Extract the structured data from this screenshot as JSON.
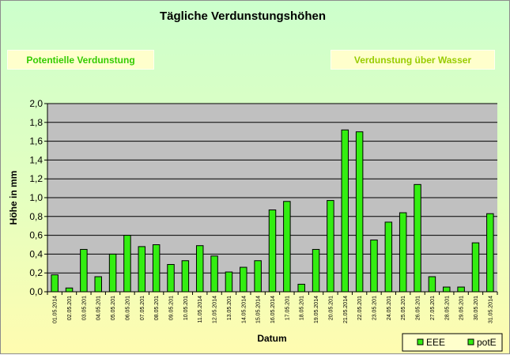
{
  "title": "Tägliche Verdunstungshöhen",
  "buttons": {
    "potential": "Potentielle Verdunstung",
    "wasser": "Verdunstung über Wasser"
  },
  "colors": {
    "bar": "#33ee11",
    "plot_bg": "#c0c0c0",
    "potential_text": "#33cc00",
    "wasser_text": "#99cc00"
  },
  "chart_data": {
    "type": "bar",
    "title": "Tägliche Verdunstungshöhen",
    "xlabel": "Datum",
    "ylabel": "Höhe in mm",
    "ylim": [
      0,
      2.0
    ],
    "yticks": [
      "0,0",
      "0,2",
      "0,4",
      "0,6",
      "0,8",
      "1,0",
      "1,2",
      "1,4",
      "1,6",
      "1,8",
      "2,0"
    ],
    "grid": true,
    "legend_position": "bottom-right",
    "categories": [
      "01.05.2014",
      "02.05.201",
      "03.05.201",
      "04.05.201",
      "05.05.201",
      "06.05.201",
      "07.05.201",
      "08.05.201",
      "09.05.201",
      "10.05.201",
      "11.05.2014",
      "12.05.2014",
      "13.05.201",
      "14.05.2014",
      "15.05.2014",
      "16.05.2014",
      "17.05.201",
      "18.05.201",
      "19.05.2014",
      "20.05.201",
      "21.05.2014",
      "22.05.201",
      "23.05.201",
      "24.05.201",
      "25.05.201",
      "26.05.201",
      "27.05.201",
      "28.05.201",
      "29.05.201",
      "30.05.201",
      "31.05.2014"
    ],
    "series": [
      {
        "name": "EEE",
        "values": [
          0,
          0,
          0,
          0,
          0,
          0,
          0,
          0,
          0,
          0,
          0,
          0,
          0,
          0,
          0,
          0,
          0,
          0,
          0,
          0,
          0,
          0,
          0,
          0,
          0,
          0,
          0,
          0,
          0,
          0,
          0
        ]
      },
      {
        "name": "potE",
        "values": [
          0.18,
          0.04,
          0.45,
          0.16,
          0.4,
          0.6,
          0.48,
          0.5,
          0.29,
          0.33,
          0.49,
          0.38,
          0.21,
          0.26,
          0.33,
          0.87,
          0.96,
          0.08,
          0.45,
          0.97,
          1.72,
          1.7,
          0.55,
          0.74,
          0.84,
          1.14,
          0.16,
          0.05,
          0.05,
          0.52,
          0.83
        ]
      }
    ]
  }
}
